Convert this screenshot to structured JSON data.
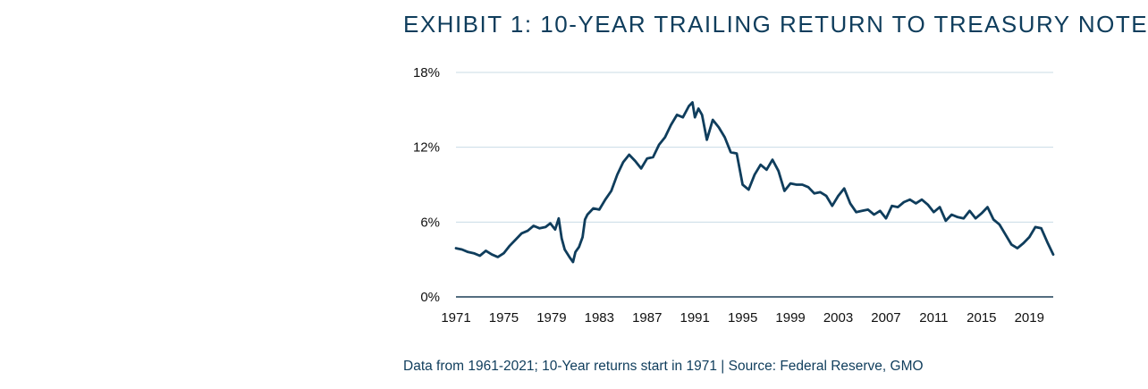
{
  "chart_data": {
    "type": "line",
    "title": "EXHIBIT 1: 10-YEAR TRAILING RETURN TO TREASURY NOTE",
    "xlabel": "",
    "ylabel": "",
    "xlim": [
      1971,
      2021
    ],
    "ylim": [
      0,
      18
    ],
    "y_ticks": [
      0,
      6,
      12,
      18
    ],
    "y_tick_labels": [
      "0%",
      "6%",
      "12%",
      "18%"
    ],
    "x_ticks": [
      1971,
      1975,
      1979,
      1983,
      1987,
      1991,
      1995,
      1999,
      2003,
      2007,
      2011,
      2015,
      2019
    ],
    "x_tick_labels": [
      "1971",
      "1975",
      "1979",
      "1983",
      "1987",
      "1991",
      "1995",
      "1999",
      "2003",
      "2007",
      "2011",
      "2015",
      "2019"
    ],
    "grid": "horizontal",
    "colors": {
      "line": "#0f3d5c",
      "grid": "#c9dbe6",
      "axis": "#1b3f56"
    },
    "series": [
      {
        "x": [
          1971.0,
          1971.5,
          1972.0,
          1972.5,
          1973.0,
          1973.5,
          1974.0,
          1974.5,
          1975.0,
          1975.5,
          1976.0,
          1976.5,
          1977.0,
          1977.5,
          1978.0,
          1978.5,
          1978.9,
          1979.3,
          1979.6,
          1979.85,
          1980.1,
          1980.5,
          1980.8,
          1981.0,
          1981.3,
          1981.6,
          1981.8,
          1982.0,
          1982.5,
          1983.0,
          1983.5,
          1984.0,
          1984.5,
          1985.0,
          1985.5,
          1986.0,
          1986.5,
          1987.0,
          1987.5,
          1988.0,
          1988.5,
          1989.0,
          1989.5,
          1990.0,
          1990.5,
          1990.8,
          1991.0,
          1991.3,
          1991.6,
          1992.0,
          1992.5,
          1993.0,
          1993.5,
          1994.0,
          1994.5,
          1995.0,
          1995.5,
          1996.0,
          1996.5,
          1997.0,
          1997.5,
          1998.0,
          1998.5,
          1999.0,
          1999.5,
          2000.0,
          2000.5,
          2001.0,
          2001.5,
          2002.0,
          2002.5,
          2003.0,
          2003.5,
          2004.0,
          2004.5,
          2005.0,
          2005.5,
          2006.0,
          2006.5,
          2007.0,
          2007.5,
          2008.0,
          2008.5,
          2009.0,
          2009.5,
          2010.0,
          2010.5,
          2011.0,
          2011.5,
          2012.0,
          2012.5,
          2013.0,
          2013.5,
          2014.0,
          2014.5,
          2015.0,
          2015.5,
          2016.0,
          2016.5,
          2017.0,
          2017.5,
          2018.0,
          2018.5,
          2019.0,
          2019.5,
          2020.0,
          2020.5,
          2021.0
        ],
        "y": [
          3.9,
          3.8,
          3.6,
          3.5,
          3.3,
          3.7,
          3.4,
          3.2,
          3.5,
          4.1,
          4.6,
          5.1,
          5.3,
          5.7,
          5.5,
          5.6,
          5.9,
          5.4,
          6.3,
          4.7,
          3.8,
          3.2,
          2.8,
          3.6,
          4.0,
          4.8,
          6.2,
          6.6,
          7.1,
          7.0,
          7.8,
          8.5,
          9.8,
          10.8,
          11.4,
          10.9,
          10.3,
          11.1,
          11.2,
          12.2,
          12.8,
          13.8,
          14.6,
          14.4,
          15.3,
          15.6,
          14.4,
          15.1,
          14.6,
          12.6,
          14.2,
          13.6,
          12.8,
          11.6,
          11.5,
          9.0,
          8.6,
          9.8,
          10.6,
          10.2,
          11.0,
          10.1,
          8.5,
          9.1,
          9.0,
          9.0,
          8.8,
          8.3,
          8.4,
          8.1,
          7.3,
          8.1,
          8.7,
          7.5,
          6.8,
          6.9,
          7.0,
          6.6,
          6.9,
          6.3,
          7.3,
          7.2,
          7.6,
          7.8,
          7.5,
          7.8,
          7.4,
          6.8,
          7.2,
          6.1,
          6.6,
          6.4,
          6.3,
          6.9,
          6.3,
          6.7,
          7.2,
          6.2,
          5.8,
          5.0,
          4.2,
          3.9,
          4.3,
          4.8,
          5.6,
          5.5,
          4.4,
          3.4
        ]
      }
    ]
  },
  "source_note": "Data from 1961-2021; 10-Year returns start in 1971 | Source: Federal Reserve, GMO"
}
